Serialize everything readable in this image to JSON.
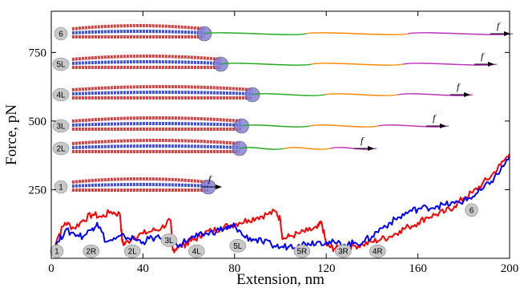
{
  "chart_data": {
    "type": "line",
    "xlabel": "Extension, nm",
    "ylabel": "Force, pN",
    "xlim": [
      0,
      200
    ],
    "ylim": [
      0,
      900
    ],
    "x_ticks": [
      0,
      40,
      80,
      120,
      160,
      200
    ],
    "y_ticks": [
      250,
      500,
      750
    ],
    "grid": false,
    "colors": {
      "series_a": "#ff0000",
      "series_b": "#0000ff"
    },
    "series": [
      {
        "color": "#ff0000",
        "x": [
          0,
          3,
          6,
          10,
          14,
          18,
          22,
          26,
          30,
          31,
          32,
          36,
          40,
          44,
          48,
          52,
          53,
          55,
          58,
          60,
          63,
          66,
          70,
          74,
          78,
          82,
          86,
          90,
          94,
          98,
          100,
          101,
          104,
          108,
          112,
          116,
          118,
          120,
          122,
          124,
          128,
          132,
          136,
          140,
          144,
          148,
          152,
          156,
          160,
          164,
          168,
          172,
          176,
          180,
          184,
          188,
          192,
          196,
          200
        ],
        "y": [
          20,
          80,
          130,
          110,
          140,
          160,
          150,
          170,
          160,
          60,
          50,
          80,
          90,
          100,
          110,
          140,
          30,
          40,
          50,
          60,
          70,
          90,
          100,
          110,
          120,
          130,
          140,
          150,
          160,
          170,
          140,
          70,
          80,
          90,
          100,
          110,
          130,
          50,
          40,
          35,
          40,
          45,
          50,
          60,
          70,
          80,
          100,
          115,
          130,
          150,
          160,
          170,
          190,
          220,
          240,
          270,
          300,
          340,
          380
        ]
      },
      {
        "color": "#0000ff",
        "x": [
          0,
          3,
          6,
          10,
          14,
          18,
          20,
          24,
          28,
          32,
          36,
          40,
          44,
          48,
          52,
          56,
          60,
          64,
          68,
          72,
          76,
          78,
          80,
          84,
          88,
          92,
          96,
          100,
          104,
          108,
          112,
          116,
          120,
          124,
          128,
          132,
          136,
          140,
          144,
          148,
          152,
          156,
          160,
          164,
          168,
          172,
          176,
          180,
          184,
          188,
          192,
          196,
          200
        ],
        "y": [
          20,
          60,
          100,
          90,
          80,
          110,
          130,
          60,
          70,
          80,
          70,
          60,
          75,
          70,
          60,
          50,
          70,
          80,
          90,
          100,
          110,
          110,
          120,
          80,
          70,
          60,
          50,
          40,
          45,
          50,
          55,
          60,
          60,
          55,
          50,
          55,
          60,
          80,
          110,
          130,
          150,
          170,
          180,
          185,
          190,
          195,
          200,
          210,
          225,
          250,
          280,
          320,
          370
        ]
      }
    ],
    "annotations": [
      {
        "label": "1",
        "x": 1,
        "y": 20
      },
      {
        "label": "2R",
        "x": 16,
        "y": 20
      },
      {
        "label": "2L",
        "x": 34,
        "y": 20
      },
      {
        "label": "3L",
        "x": 50,
        "y": 60
      },
      {
        "label": "4L",
        "x": 62,
        "y": 20
      },
      {
        "label": "5L",
        "x": 80,
        "y": 40
      },
      {
        "label": "5R",
        "x": 108,
        "y": 20
      },
      {
        "label": "3R",
        "x": 126,
        "y": 20
      },
      {
        "label": "4R",
        "x": 141,
        "y": 20
      },
      {
        "label": "6",
        "x": 182,
        "y": 170
      }
    ],
    "insets": [
      {
        "label": "1",
        "force_label": "f"
      },
      {
        "label": "2L",
        "force_label": "f"
      },
      {
        "label": "3L",
        "force_label": "f"
      },
      {
        "label": "4L",
        "force_label": "f"
      },
      {
        "label": "5L",
        "force_label": "f"
      },
      {
        "label": "6",
        "force_label": "f"
      }
    ]
  }
}
